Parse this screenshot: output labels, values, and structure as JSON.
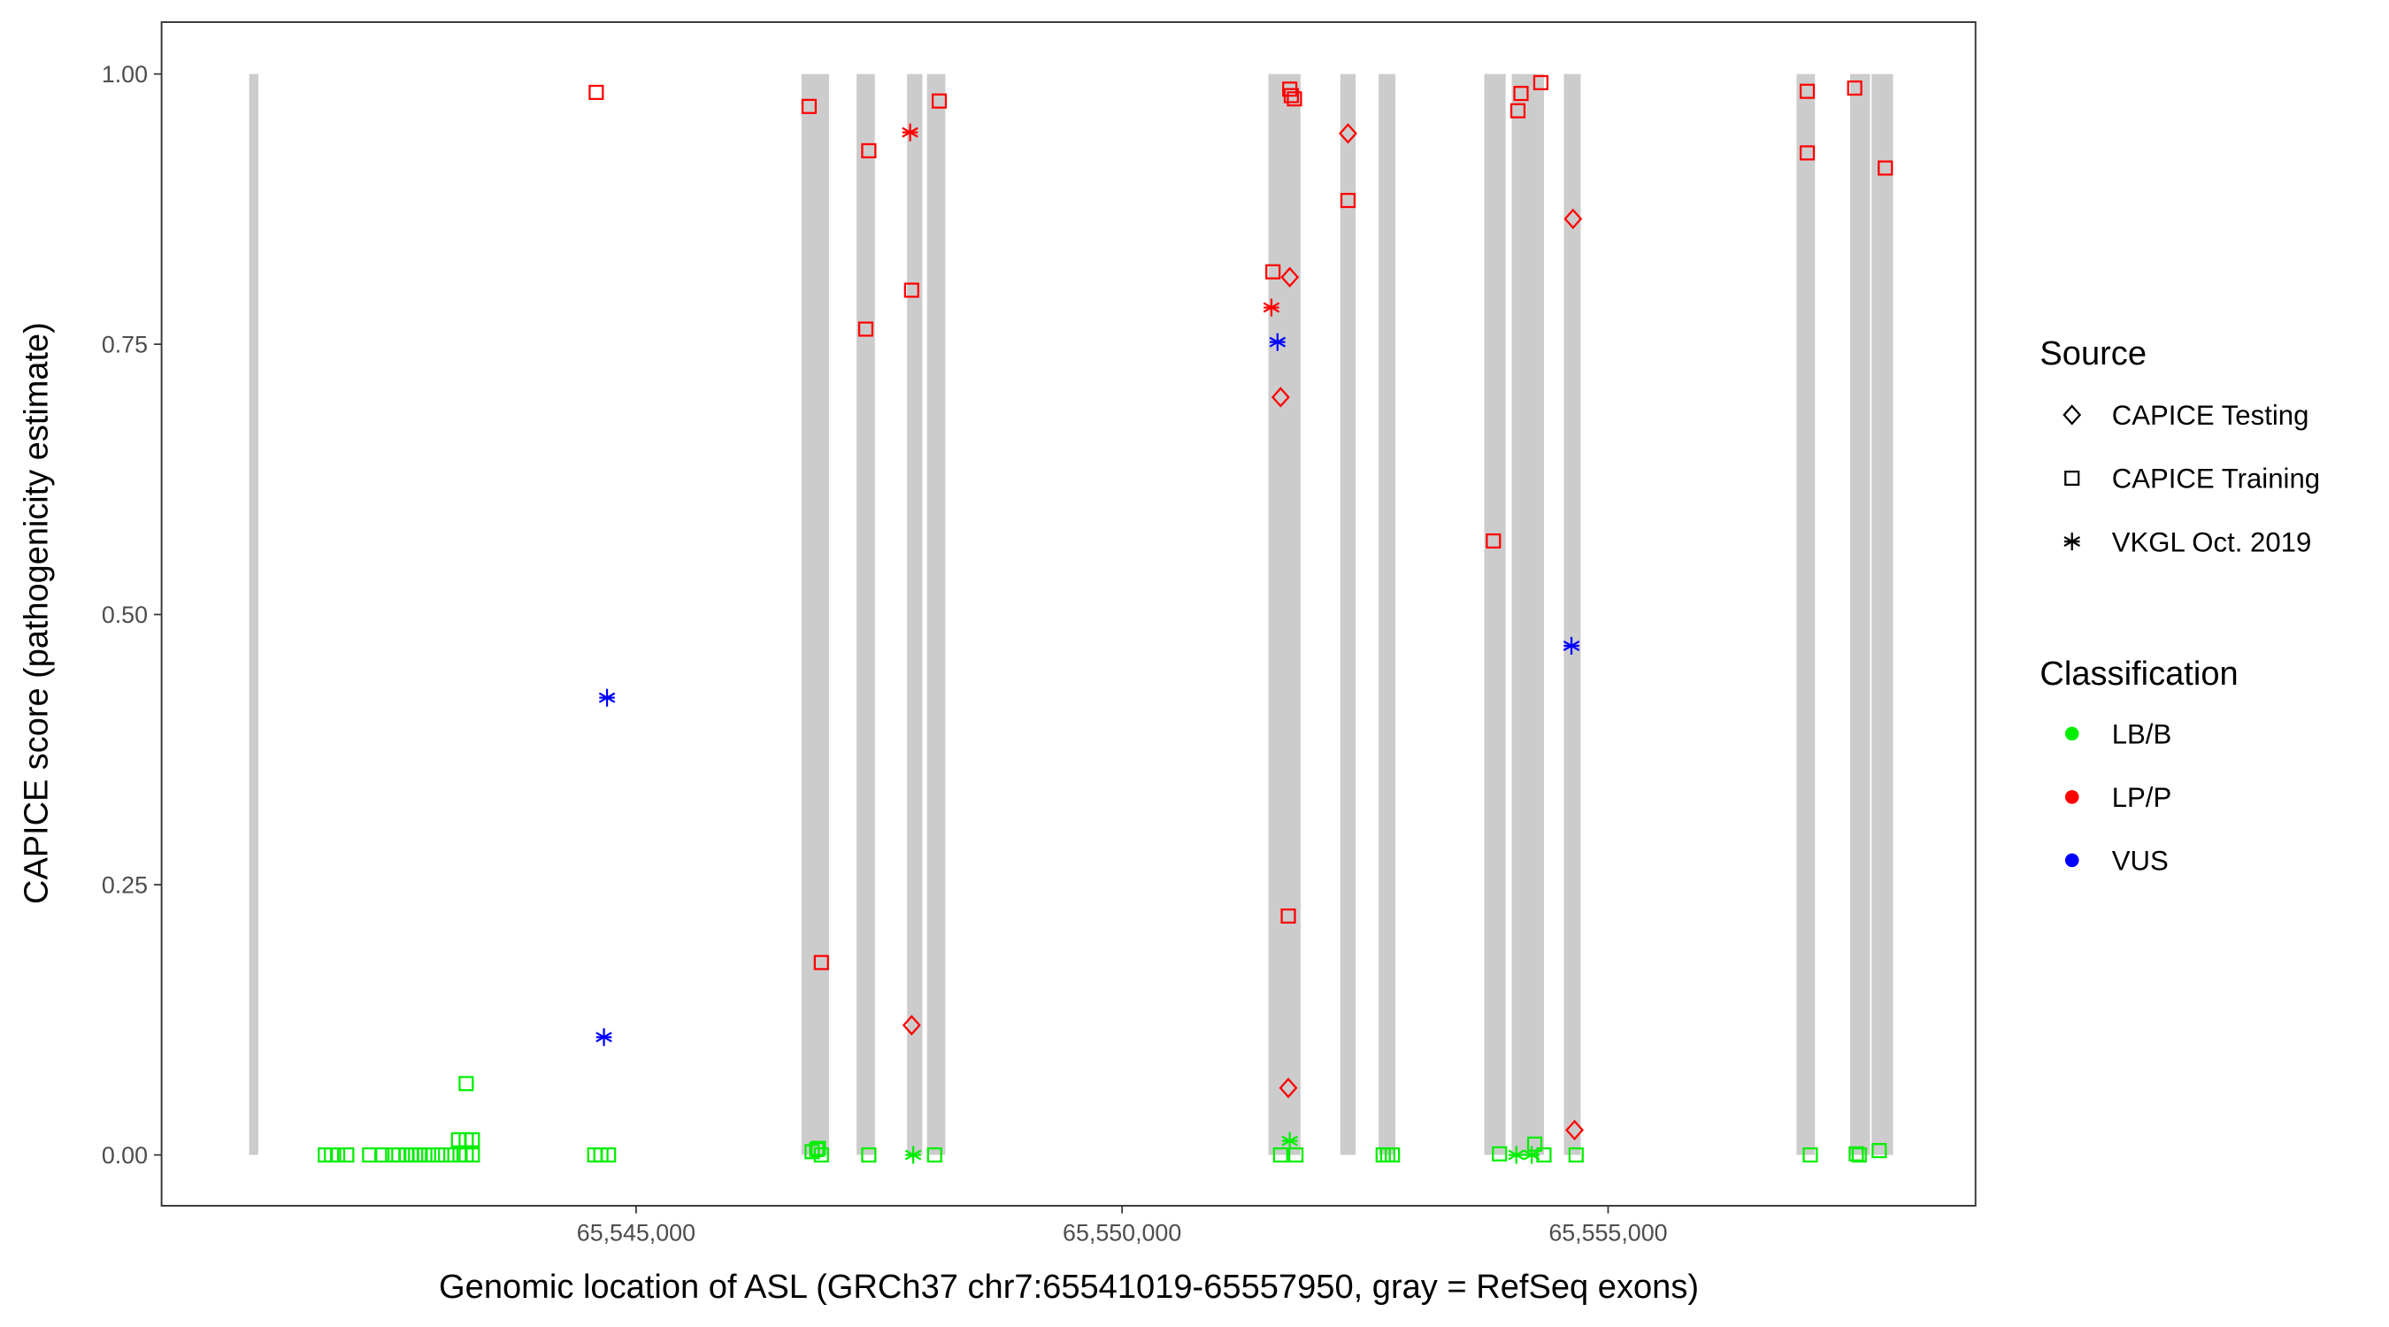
{
  "chart_data": {
    "type": "scatter",
    "xlabel": "Genomic location of ASL (GRCh37 chr7:65541019-65557950, gray = RefSeq exons)",
    "ylabel": "CAPICE score (pathogenicity estimate)",
    "xlim": [
      65540118,
      65558780
    ],
    "ylim": [
      -0.047,
      1.048
    ],
    "x_ticks": [
      65545000,
      65550000,
      65555000
    ],
    "x_tick_labels": [
      "65,545,000",
      "65,550,000",
      "65,555,000"
    ],
    "y_ticks": [
      0,
      0.25,
      0.5,
      0.75,
      1.0
    ],
    "y_tick_labels": [
      "0.00",
      "0.25",
      "0.50",
      "0.75",
      "1.00"
    ],
    "grid": false,
    "exon_color": "#cccccc",
    "exons": [
      [
        65541019,
        65541078
      ],
      [
        65546701,
        65546985
      ],
      [
        65547268,
        65547457
      ],
      [
        65547788,
        65547945
      ],
      [
        65547993,
        65548182
      ],
      [
        65551505,
        65551836
      ],
      [
        65552245,
        65552403
      ],
      [
        65552639,
        65552812
      ],
      [
        65553726,
        65553946
      ],
      [
        65554009,
        65554340
      ],
      [
        65554545,
        65554718
      ],
      [
        65556939,
        65557128
      ],
      [
        65557490,
        65557695
      ],
      [
        65557711,
        65557932
      ]
    ],
    "legend_position": "right",
    "legend": {
      "source_title": "Source",
      "sources": [
        {
          "key": "testing",
          "label": "CAPICE Testing",
          "shape": "diamond"
        },
        {
          "key": "training",
          "label": "CAPICE Training",
          "shape": "square"
        },
        {
          "key": "vkgl",
          "label": "VKGL Oct. 2019",
          "shape": "asterisk"
        }
      ],
      "class_title": "Classification",
      "classes": [
        {
          "key": "LB/B",
          "label": "LB/B",
          "color": "#00ee00"
        },
        {
          "key": "LP/P",
          "label": "LP/P",
          "color": "#ff0000"
        },
        {
          "key": "VUS",
          "label": "VUS",
          "color": "#0000ff"
        }
      ]
    },
    "points": [
      [
        65544590,
        0.983,
        "training",
        "LP/P"
      ],
      [
        65546780,
        0.97,
        "training",
        "LP/P"
      ],
      [
        65547394,
        0.929,
        "training",
        "LP/P"
      ],
      [
        65547363,
        0.764,
        "training",
        "LP/P"
      ],
      [
        65547835,
        0.8,
        "training",
        "LP/P"
      ],
      [
        65548119,
        0.975,
        "training",
        "LP/P"
      ],
      [
        65546906,
        0.178,
        "training",
        "LP/P"
      ],
      [
        65551552,
        0.817,
        "training",
        "LP/P"
      ],
      [
        65551725,
        0.986,
        "training",
        "LP/P"
      ],
      [
        65551741,
        0.98,
        "training",
        "LP/P"
      ],
      [
        65551773,
        0.977,
        "training",
        "LP/P"
      ],
      [
        65551710,
        0.221,
        "training",
        "LP/P"
      ],
      [
        65552324,
        0.883,
        "training",
        "LP/P"
      ],
      [
        65553820,
        0.568,
        "training",
        "LP/P"
      ],
      [
        65554072,
        0.966,
        "training",
        "LP/P"
      ],
      [
        65554104,
        0.982,
        "training",
        "LP/P"
      ],
      [
        65554308,
        0.992,
        "training",
        "LP/P"
      ],
      [
        65557049,
        0.984,
        "training",
        "LP/P"
      ],
      [
        65557537,
        0.987,
        "training",
        "LP/P"
      ],
      [
        65557049,
        0.927,
        "training",
        "LP/P"
      ],
      [
        65557852,
        0.913,
        "training",
        "LP/P"
      ],
      [
        65552324,
        0.945,
        "testing",
        "LP/P"
      ],
      [
        65551725,
        0.812,
        "testing",
        "LP/P"
      ],
      [
        65551631,
        0.701,
        "testing",
        "LP/P"
      ],
      [
        65547835,
        0.12,
        "testing",
        "LP/P"
      ],
      [
        65551710,
        0.062,
        "testing",
        "LP/P"
      ],
      [
        65554639,
        0.866,
        "testing",
        "LP/P"
      ],
      [
        65554655,
        0.023,
        "testing",
        "LP/P"
      ],
      [
        65547819,
        0.946,
        "vkgl",
        "LP/P"
      ],
      [
        65551536,
        0.784,
        "vkgl",
        "LP/P"
      ],
      [
        65544701,
        0.423,
        "vkgl",
        "VUS"
      ],
      [
        65544669,
        0.109,
        "vkgl",
        "VUS"
      ],
      [
        65551599,
        0.752,
        "vkgl",
        "VUS"
      ],
      [
        65554623,
        0.471,
        "vkgl",
        "VUS"
      ],
      [
        65541803,
        0,
        "training",
        "LB/B"
      ],
      [
        65541866,
        0,
        "training",
        "LB/B"
      ],
      [
        65541929,
        0,
        "training",
        "LB/B"
      ],
      [
        65542023,
        0,
        "training",
        "LB/B"
      ],
      [
        65542259,
        0,
        "training",
        "LB/B"
      ],
      [
        65542385,
        0,
        "training",
        "LB/B"
      ],
      [
        65542496,
        0,
        "training",
        "LB/B"
      ],
      [
        65542559,
        0,
        "training",
        "LB/B"
      ],
      [
        65542637,
        0,
        "training",
        "LB/B"
      ],
      [
        65542685,
        0,
        "training",
        "LB/B"
      ],
      [
        65542732,
        0,
        "training",
        "LB/B"
      ],
      [
        65542779,
        0,
        "training",
        "LB/B"
      ],
      [
        65542826,
        0,
        "training",
        "LB/B"
      ],
      [
        65542905,
        0,
        "training",
        "LB/B"
      ],
      [
        65543000,
        0,
        "training",
        "LB/B"
      ],
      [
        65543094,
        0,
        "training",
        "LB/B"
      ],
      [
        65543189,
        0,
        "training",
        "LB/B"
      ],
      [
        65543252,
        0,
        "training",
        "LB/B"
      ],
      [
        65543315,
        0,
        "training",
        "LB/B"
      ],
      [
        65543252,
        0.066,
        "training",
        "LB/B"
      ],
      [
        65543173,
        0.014,
        "training",
        "LB/B"
      ],
      [
        65543252,
        0.014,
        "training",
        "LB/B"
      ],
      [
        65543315,
        0.014,
        "training",
        "LB/B"
      ],
      [
        65544575,
        0,
        "training",
        "LB/B"
      ],
      [
        65544638,
        0,
        "training",
        "LB/B"
      ],
      [
        65544716,
        0,
        "training",
        "LB/B"
      ],
      [
        65546811,
        0.003,
        "training",
        "LB/B"
      ],
      [
        65546859,
        0.005,
        "training",
        "LB/B"
      ],
      [
        65546874,
        0.006,
        "training",
        "LB/B"
      ],
      [
        65546906,
        0,
        "training",
        "LB/B"
      ],
      [
        65547394,
        0,
        "training",
        "LB/B"
      ],
      [
        65548071,
        0,
        "training",
        "LB/B"
      ],
      [
        65551631,
        0,
        "training",
        "LB/B"
      ],
      [
        65551788,
        0,
        "training",
        "LB/B"
      ],
      [
        65552686,
        0,
        "training",
        "LB/B"
      ],
      [
        65552733,
        0,
        "training",
        "LB/B"
      ],
      [
        65552781,
        0,
        "training",
        "LB/B"
      ],
      [
        65553883,
        0.001,
        "training",
        "LB/B"
      ],
      [
        65554245,
        0.01,
        "training",
        "LB/B"
      ],
      [
        65554340,
        0,
        "training",
        "LB/B"
      ],
      [
        65554671,
        0,
        "training",
        "LB/B"
      ],
      [
        65557080,
        0,
        "training",
        "LB/B"
      ],
      [
        65557553,
        0.001,
        "training",
        "LB/B"
      ],
      [
        65557584,
        0,
        "training",
        "LB/B"
      ],
      [
        65557789,
        0.004,
        "training",
        "LB/B"
      ],
      [
        65547851,
        0,
        "vkgl",
        "LB/B"
      ],
      [
        65551725,
        0.013,
        "vkgl",
        "LB/B"
      ],
      [
        65554056,
        0,
        "vkgl",
        "LB/B"
      ],
      [
        65554214,
        0,
        "vkgl",
        "LB/B"
      ]
    ]
  }
}
